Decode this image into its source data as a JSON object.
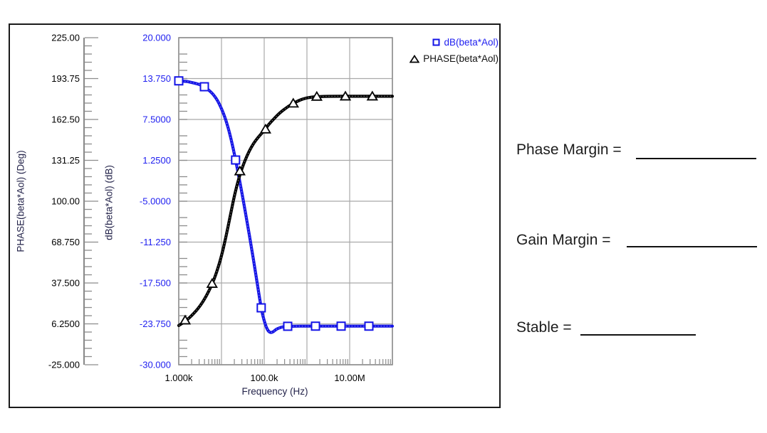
{
  "panel": {
    "rows": [
      {
        "label": "Phase Margin ="
      },
      {
        "label": "Gain Margin ="
      },
      {
        "label": "Stable ="
      }
    ]
  },
  "chart_data": {
    "type": "line",
    "x_axis": {
      "title": "Frequency (Hz)",
      "scale": "log",
      "log_range": [
        3,
        8
      ],
      "tick_labels": [
        {
          "label": "1.000k",
          "log10": 3
        },
        {
          "label": "100.0k",
          "log10": 5
        },
        {
          "label": "10.00M",
          "log10": 7
        }
      ]
    },
    "y_axis_phase": {
      "title": "PHASE(beta*Aol) (Deg)",
      "range": [
        -25,
        225
      ],
      "tick_step": 31.25,
      "tick_labels": [
        "225.00",
        "193.75",
        "162.50",
        "131.25",
        "100.00",
        "68.750",
        "37.500",
        "6.2500",
        "-25.000"
      ]
    },
    "y_axis_db": {
      "title": "dB(beta*Aol) (dB)",
      "range": [
        -30,
        20
      ],
      "tick_step": 6.25,
      "tick_labels": [
        "20.000",
        "13.750",
        "7.5000",
        "1.2500",
        "-5.0000",
        "-11.250",
        "-17.500",
        "-23.750",
        "-30.000"
      ]
    },
    "legend": [
      {
        "label": "dB(beta*Aol)",
        "marker": "square",
        "color": "#1414e6"
      },
      {
        "label": "PHASE(beta*Aol)",
        "marker": "triangle",
        "color": "#000000"
      }
    ],
    "grid": {
      "enabled": true,
      "color": "#a9a9a9"
    },
    "series": [
      {
        "name": "dB(beta*Aol)",
        "axis": "db",
        "color": "#1414e6",
        "marker": "square",
        "points": [
          [
            3.0,
            13.4
          ],
          [
            3.1,
            13.35
          ],
          [
            3.2,
            13.3
          ],
          [
            3.3,
            13.15
          ],
          [
            3.4,
            13.0
          ],
          [
            3.5,
            12.8
          ],
          [
            3.6,
            12.5
          ],
          [
            3.7,
            12.0
          ],
          [
            3.8,
            11.4
          ],
          [
            3.9,
            10.5
          ],
          [
            4.0,
            9.2
          ],
          [
            4.1,
            7.5
          ],
          [
            4.2,
            5.2
          ],
          [
            4.3,
            2.3
          ],
          [
            4.4,
            -1.0
          ],
          [
            4.5,
            -4.5
          ],
          [
            4.6,
            -8.2
          ],
          [
            4.7,
            -12.0
          ],
          [
            4.8,
            -16.0
          ],
          [
            4.9,
            -20.2
          ],
          [
            4.95,
            -22.0
          ],
          [
            5.0,
            -23.3
          ],
          [
            5.05,
            -24.3
          ],
          [
            5.1,
            -24.9
          ],
          [
            5.15,
            -25.1
          ],
          [
            5.2,
            -25.0
          ],
          [
            5.25,
            -24.75
          ],
          [
            5.3,
            -24.5
          ],
          [
            5.4,
            -24.25
          ],
          [
            5.5,
            -24.15
          ],
          [
            5.7,
            -24.1
          ],
          [
            6.0,
            -24.1
          ],
          [
            6.5,
            -24.1
          ],
          [
            7.0,
            -24.1
          ],
          [
            7.5,
            -24.1
          ],
          [
            8.0,
            -24.1
          ]
        ],
        "marker_points": [
          [
            3.0,
            13.4
          ],
          [
            3.6,
            12.5
          ],
          [
            4.33,
            1.3
          ],
          [
            4.93,
            -21.3
          ],
          [
            5.55,
            -24.12
          ],
          [
            6.2,
            -24.1
          ],
          [
            6.8,
            -24.1
          ],
          [
            7.45,
            -24.1
          ]
        ]
      },
      {
        "name": "PHASE(beta*Aol)",
        "axis": "phase",
        "color": "#000000",
        "marker": "triangle",
        "points": [
          [
            3.0,
            5
          ],
          [
            3.1,
            7
          ],
          [
            3.2,
            9.5
          ],
          [
            3.3,
            12.5
          ],
          [
            3.4,
            16
          ],
          [
            3.5,
            20
          ],
          [
            3.6,
            25
          ],
          [
            3.7,
            31
          ],
          [
            3.8,
            38
          ],
          [
            3.9,
            47
          ],
          [
            4.0,
            58
          ],
          [
            4.1,
            72
          ],
          [
            4.2,
            88
          ],
          [
            4.3,
            104
          ],
          [
            4.4,
            117
          ],
          [
            4.5,
            127
          ],
          [
            4.6,
            135
          ],
          [
            4.7,
            141.5
          ],
          [
            4.8,
            146.5
          ],
          [
            4.9,
            150.5
          ],
          [
            5.0,
            154
          ],
          [
            5.1,
            158.5
          ],
          [
            5.2,
            162
          ],
          [
            5.3,
            165.5
          ],
          [
            5.4,
            168.5
          ],
          [
            5.5,
            171
          ],
          [
            5.6,
            173.2
          ],
          [
            5.7,
            175.2
          ],
          [
            5.8,
            176.8
          ],
          [
            5.9,
            178.1
          ],
          [
            6.0,
            179.0
          ],
          [
            6.1,
            179.5
          ],
          [
            6.2,
            179.8
          ],
          [
            6.4,
            180.1
          ],
          [
            6.6,
            180.2
          ],
          [
            7.0,
            180.2
          ],
          [
            8.0,
            180.2
          ]
        ],
        "marker_points": [
          [
            3.15,
            9
          ],
          [
            3.78,
            37
          ],
          [
            4.43,
            123
          ],
          [
            5.03,
            155
          ],
          [
            5.68,
            174.8
          ],
          [
            6.23,
            180
          ],
          [
            6.9,
            180.2
          ],
          [
            7.53,
            180.2
          ]
        ]
      }
    ]
  }
}
